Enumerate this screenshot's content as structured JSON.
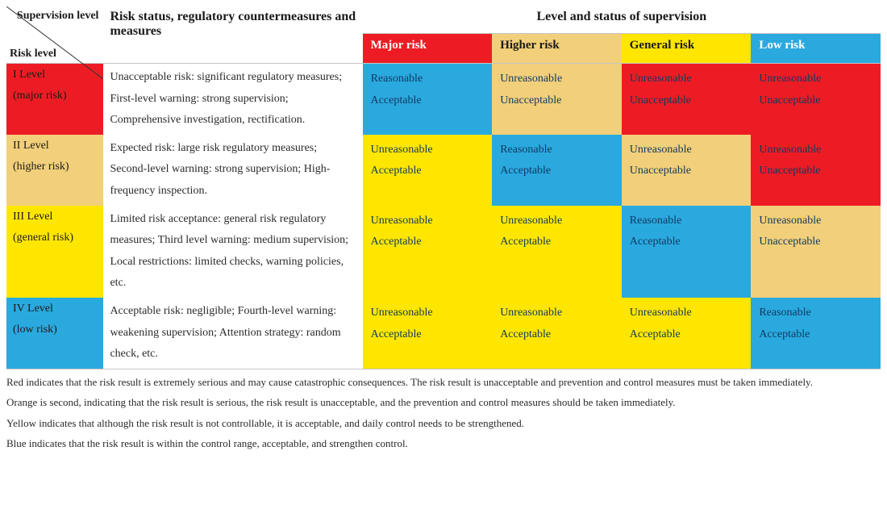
{
  "colors": {
    "red": "#ed1c24",
    "orange": "#f2cf7a",
    "yellow": "#ffe600",
    "blue": "#2aa9df",
    "header_red": "#ed1c24",
    "header_orange": "#f2cf7a",
    "header_yellow": "#ffe600",
    "header_blue": "#2aa9df",
    "text_dark": "#1a1a1a",
    "text_navy": "#0f3a5f"
  },
  "header": {
    "diag_top": "Supervision level",
    "diag_bot": "Risk level",
    "subtitle": "Risk status, regulatory countermeasures and measures",
    "supertitle": "Level and status of supervision",
    "cols": [
      "Major risk",
      "Higher risk",
      "General risk",
      "Low risk"
    ]
  },
  "rows": [
    {
      "label_line1": "I Level",
      "label_line2": "(major risk)",
      "label_bg": "#ed1c24",
      "measures": "Unacceptable risk: significant regulatory measures; First-level warning: strong supervision; Comprehensive investigation, rectification.",
      "cells": [
        {
          "l1": "Reasonable",
          "l2": "Acceptable",
          "bg": "#2aa9df"
        },
        {
          "l1": "Unreasonable",
          "l2": "Unacceptable",
          "bg": "#f2cf7a"
        },
        {
          "l1": "Unreasonable",
          "l2": "Unacceptable",
          "bg": "#ed1c24"
        },
        {
          "l1": "Unreasonable",
          "l2": "Unacceptable",
          "bg": "#ed1c24"
        }
      ]
    },
    {
      "label_line1": "II Level",
      "label_line2": "(higher risk)",
      "label_bg": "#f2cf7a",
      "measures": "Expected risk: large risk regulatory measures; Second-level warning: strong supervision; High-frequency inspection.",
      "cells": [
        {
          "l1": "Unreasonable",
          "l2": "Acceptable",
          "bg": "#ffe600"
        },
        {
          "l1": "Reasonable",
          "l2": "Acceptable",
          "bg": "#2aa9df"
        },
        {
          "l1": "Unreasonable",
          "l2": "Unacceptable",
          "bg": "#f2cf7a"
        },
        {
          "l1": "Unreasonable",
          "l2": "Unacceptable",
          "bg": "#ed1c24"
        }
      ]
    },
    {
      "label_line1": "III Level",
      "label_line2": "(general risk)",
      "label_bg": "#ffe600",
      "measures": "Limited risk acceptance: general risk regulatory measures; Third level warning: medium supervision; Local restrictions: limited checks, warning policies, etc.",
      "cells": [
        {
          "l1": "Unreasonable",
          "l2": "Acceptable",
          "bg": "#ffe600"
        },
        {
          "l1": "Unreasonable",
          "l2": "Acceptable",
          "bg": "#ffe600"
        },
        {
          "l1": "Reasonable",
          "l2": "Acceptable",
          "bg": "#2aa9df"
        },
        {
          "l1": "Unreasonable",
          "l2": "Unacceptable",
          "bg": "#f2cf7a"
        }
      ]
    },
    {
      "label_line1": "IV Level",
      "label_line2": "(low risk)",
      "label_bg": "#2aa9df",
      "measures": "Acceptable risk: negligible; Fourth-level warning: weakening supervision; Attention strategy: random check, etc.",
      "cells": [
        {
          "l1": "Unreasonable",
          "l2": "Acceptable",
          "bg": "#ffe600"
        },
        {
          "l1": "Unreasonable",
          "l2": "Acceptable",
          "bg": "#ffe600"
        },
        {
          "l1": "Unreasonable",
          "l2": "Acceptable",
          "bg": "#ffe600"
        },
        {
          "l1": "Reasonable",
          "l2": "Acceptable",
          "bg": "#2aa9df"
        }
      ]
    }
  ],
  "legend": [
    "Red indicates that the risk result is extremely serious and may cause catastrophic consequences. The risk result is unacceptable and prevention and control measures must be taken immediately.",
    "Orange is second, indicating that the risk result is serious, the risk result is unacceptable, and the prevention and control measures should be taken immediately.",
    "Yellow indicates that although the risk result is not controllable, it is acceptable, and daily control needs to be strengthened.",
    "Blue indicates that the risk result is within the control range, acceptable, and strengthen control."
  ]
}
